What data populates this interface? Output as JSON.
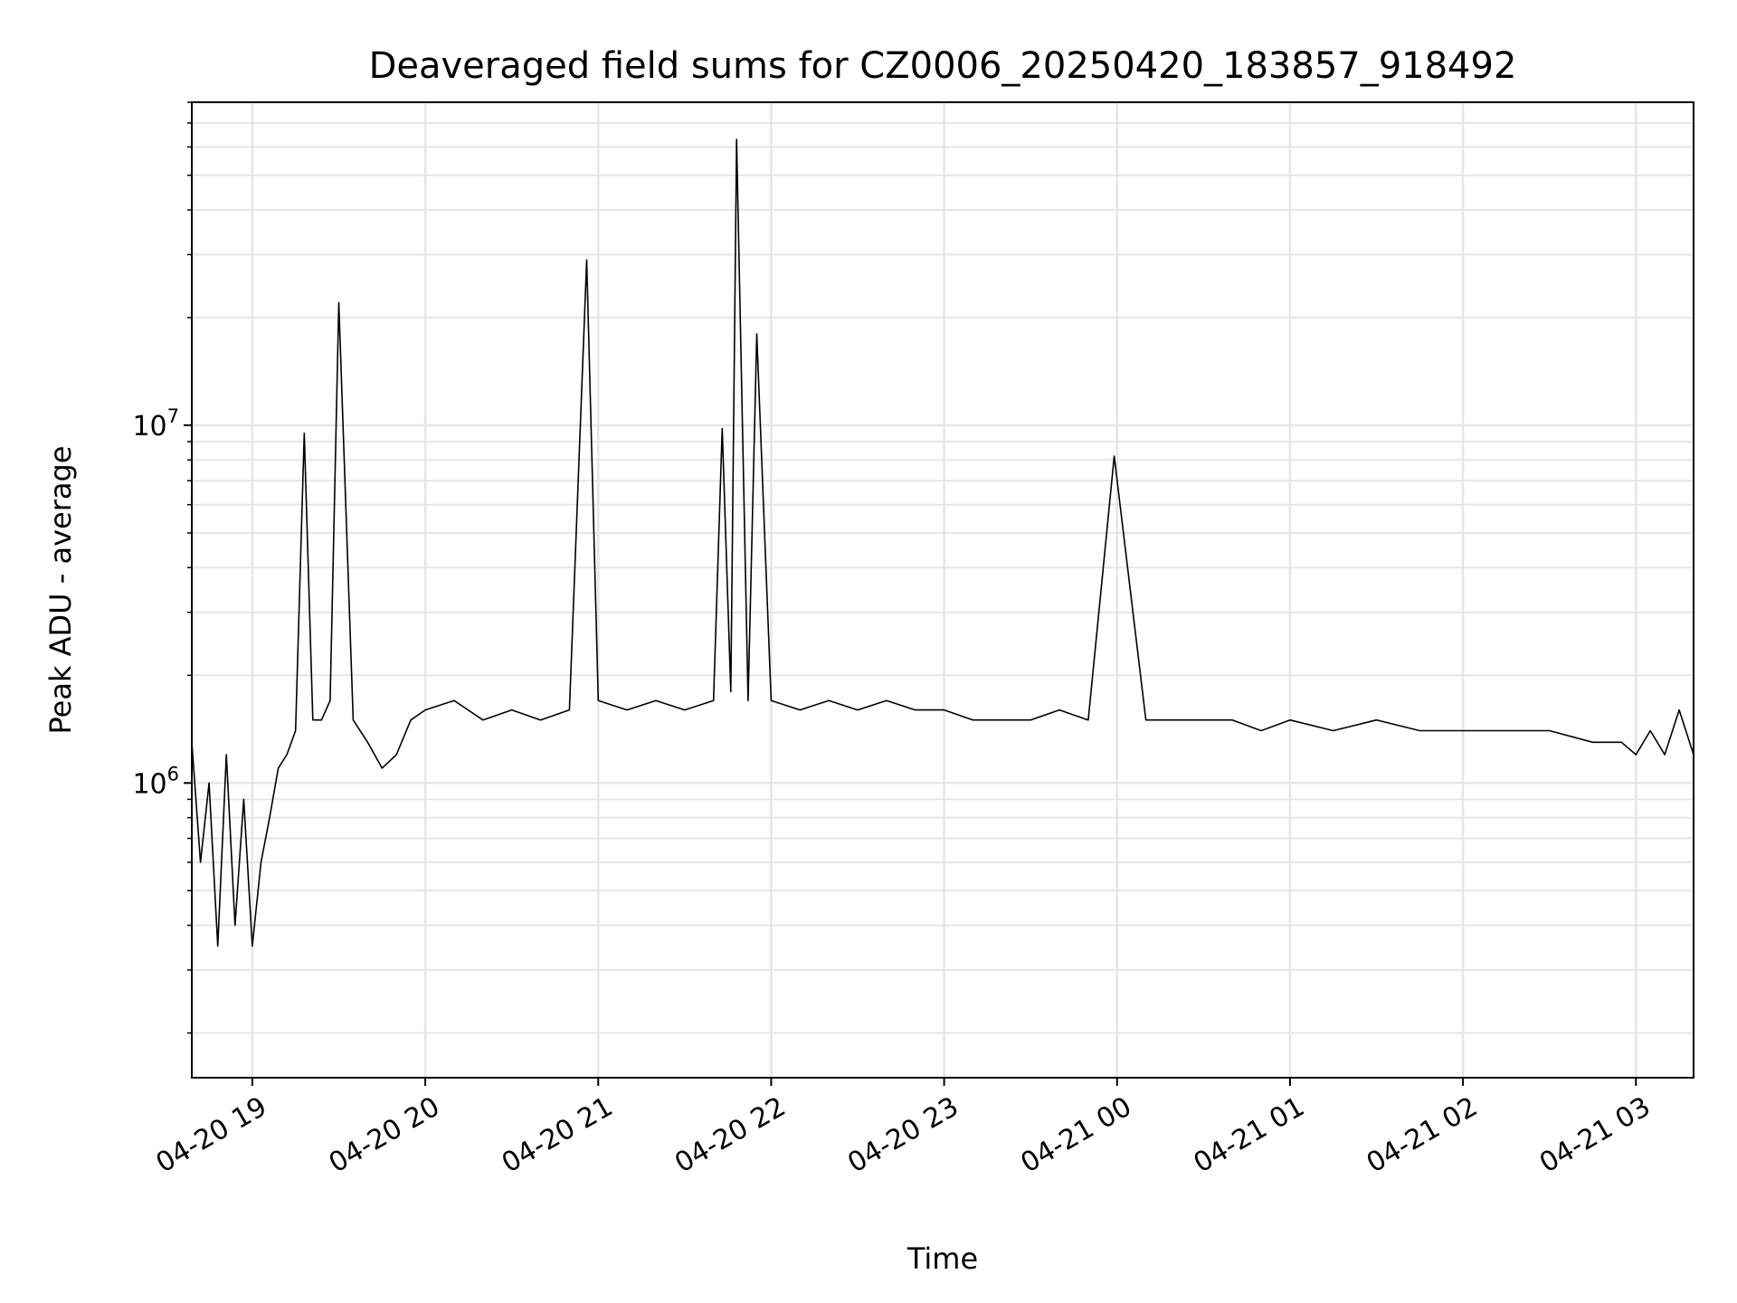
{
  "chart_data": {
    "type": "line",
    "title": "Deaveraged field sums for CZ0006_20250420_183857_918492",
    "xlabel": "Time",
    "ylabel": "Peak ADU - average",
    "y_scale": "log",
    "ylim": [
      150000,
      80000000
    ],
    "xlim": [
      "2025-04-20 18:39",
      "2025-04-21 03:20"
    ],
    "grid": true,
    "line_color": "#000000",
    "grid_color": "#e6e6e6",
    "x_ticks": [
      {
        "label": "04-20 19",
        "value": "2025-04-20 19:00"
      },
      {
        "label": "04-20 20",
        "value": "2025-04-20 20:00"
      },
      {
        "label": "04-20 21",
        "value": "2025-04-20 21:00"
      },
      {
        "label": "04-20 22",
        "value": "2025-04-20 22:00"
      },
      {
        "label": "04-20 23",
        "value": "2025-04-20 23:00"
      },
      {
        "label": "04-21 00",
        "value": "2025-04-21 00:00"
      },
      {
        "label": "04-21 01",
        "value": "2025-04-21 01:00"
      },
      {
        "label": "04-21 02",
        "value": "2025-04-21 02:00"
      },
      {
        "label": "04-21 03",
        "value": "2025-04-21 03:00"
      }
    ],
    "y_ticks": [
      {
        "base": "10",
        "exp": "6",
        "value": 1000000
      },
      {
        "base": "10",
        "exp": "7",
        "value": 10000000
      }
    ],
    "series": [
      {
        "x": [
          "2025-04-20 18:39",
          "2025-04-20 18:42",
          "2025-04-20 18:45",
          "2025-04-20 18:48",
          "2025-04-20 18:51",
          "2025-04-20 18:54",
          "2025-04-20 18:57",
          "2025-04-20 19:00",
          "2025-04-20 19:03",
          "2025-04-20 19:06",
          "2025-04-20 19:09",
          "2025-04-20 19:12",
          "2025-04-20 19:15",
          "2025-04-20 19:18",
          "2025-04-20 19:21",
          "2025-04-20 19:24",
          "2025-04-20 19:27",
          "2025-04-20 19:30",
          "2025-04-20 19:35",
          "2025-04-20 19:40",
          "2025-04-20 19:45",
          "2025-04-20 19:50",
          "2025-04-20 19:55",
          "2025-04-20 20:00",
          "2025-04-20 20:10",
          "2025-04-20 20:20",
          "2025-04-20 20:30",
          "2025-04-20 20:40",
          "2025-04-20 20:50",
          "2025-04-20 20:56",
          "2025-04-20 21:00",
          "2025-04-20 21:10",
          "2025-04-20 21:20",
          "2025-04-20 21:30",
          "2025-04-20 21:40",
          "2025-04-20 21:43",
          "2025-04-20 21:46",
          "2025-04-20 21:48",
          "2025-04-20 21:52",
          "2025-04-20 21:55",
          "2025-04-20 22:00",
          "2025-04-20 22:10",
          "2025-04-20 22:20",
          "2025-04-20 22:30",
          "2025-04-20 22:40",
          "2025-04-20 22:50",
          "2025-04-20 23:00",
          "2025-04-20 23:10",
          "2025-04-20 23:20",
          "2025-04-20 23:30",
          "2025-04-20 23:40",
          "2025-04-20 23:50",
          "2025-04-20 23:59",
          "2025-04-21 00:10",
          "2025-04-21 00:20",
          "2025-04-21 00:30",
          "2025-04-21 00:40",
          "2025-04-21 00:50",
          "2025-04-21 01:00",
          "2025-04-21 01:15",
          "2025-04-21 01:30",
          "2025-04-21 01:45",
          "2025-04-21 02:00",
          "2025-04-21 02:15",
          "2025-04-21 02:30",
          "2025-04-21 02:45",
          "2025-04-21 02:55",
          "2025-04-21 03:00",
          "2025-04-21 03:05",
          "2025-04-21 03:10",
          "2025-04-21 03:15",
          "2025-04-21 03:20"
        ],
        "y": [
          1300000,
          600000,
          1000000,
          350000,
          1200000,
          400000,
          900000,
          350000,
          600000,
          800000,
          1100000,
          1200000,
          1400000,
          9500000,
          1500000,
          1500000,
          1700000,
          22000000,
          1500000,
          1300000,
          1100000,
          1200000,
          1500000,
          1600000,
          1700000,
          1500000,
          1600000,
          1500000,
          1600000,
          29000000,
          1700000,
          1600000,
          1700000,
          1600000,
          1700000,
          9800000,
          1800000,
          63000000,
          1700000,
          18000000,
          1700000,
          1600000,
          1700000,
          1600000,
          1700000,
          1600000,
          1600000,
          1500000,
          1500000,
          1500000,
          1600000,
          1500000,
          8200000,
          1500000,
          1500000,
          1500000,
          1500000,
          1400000,
          1500000,
          1400000,
          1500000,
          1400000,
          1400000,
          1400000,
          1400000,
          1300000,
          1300000,
          1200000,
          1400000,
          1200000,
          1600000,
          1200000
        ]
      }
    ]
  }
}
